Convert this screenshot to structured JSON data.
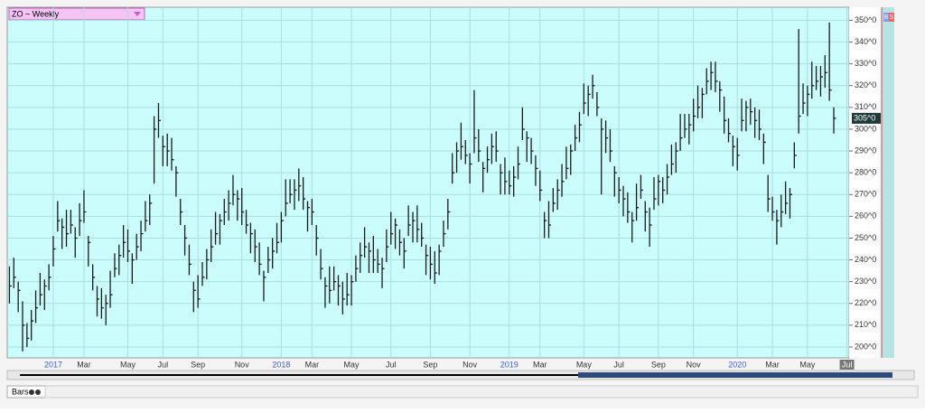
{
  "chart_data": {
    "type": "hlc",
    "title": "ZO ~ Weekly",
    "color": "#1a1a1a",
    "grid": true,
    "ylim": [
      195,
      356
    ],
    "yticks": [
      {
        "value": 200,
        "label": "200^0"
      },
      {
        "value": 210,
        "label": "210^0"
      },
      {
        "value": 220,
        "label": "220^0"
      },
      {
        "value": 230,
        "label": "230^0"
      },
      {
        "value": 240,
        "label": "240^0"
      },
      {
        "value": 250,
        "label": "250^0"
      },
      {
        "value": 260,
        "label": "260^0"
      },
      {
        "value": 270,
        "label": "270^0"
      },
      {
        "value": 280,
        "label": "280^0"
      },
      {
        "value": 290,
        "label": "290^0"
      },
      {
        "value": 300,
        "label": "300^0"
      },
      {
        "value": 310,
        "label": "310^0"
      },
      {
        "value": 320,
        "label": "320^0"
      },
      {
        "value": 330,
        "label": "330^0"
      },
      {
        "value": 340,
        "label": "340^0"
      },
      {
        "value": 350,
        "label": "350^0"
      }
    ],
    "last_price": {
      "value": 305,
      "label": "305^0"
    },
    "categories": [
      null,
      null,
      null,
      null,
      null,
      null,
      null,
      null,
      null,
      null,
      "2017",
      null,
      null,
      null,
      null,
      null,
      null,
      "Mar",
      null,
      null,
      null,
      null,
      null,
      null,
      null,
      null,
      null,
      "May",
      null,
      null,
      null,
      null,
      null,
      null,
      null,
      "Jul",
      null,
      null,
      null,
      null,
      null,
      null,
      null,
      "Sep",
      null,
      null,
      null,
      null,
      null,
      null,
      null,
      null,
      null,
      "Nov",
      null,
      null,
      null,
      null,
      null,
      null,
      null,
      null,
      "2018",
      null,
      null,
      null,
      null,
      null,
      null,
      "Mar",
      null,
      null,
      null,
      null,
      null,
      null,
      null,
      null,
      "May",
      null,
      null,
      null,
      null,
      null,
      null,
      null,
      null,
      "Jul",
      null,
      null,
      null,
      null,
      null,
      null,
      null,
      null,
      "Sep",
      null,
      null,
      null,
      null,
      null,
      null,
      null,
      null,
      "Nov",
      null,
      null,
      null,
      null,
      null,
      null,
      null,
      null,
      "2019",
      null,
      null,
      null,
      null,
      null,
      null,
      "Mar",
      null,
      null,
      null,
      null,
      null,
      null,
      null,
      null,
      null,
      "May",
      null,
      null,
      null,
      null,
      null,
      null,
      null,
      "Jul",
      null,
      null,
      null,
      null,
      null,
      null,
      null,
      null,
      "Sep",
      null,
      null,
      null,
      null,
      null,
      null,
      null,
      "Nov",
      null,
      null,
      null,
      null,
      null,
      null,
      null,
      null,
      null,
      "2020",
      null,
      null,
      null,
      null,
      null,
      null,
      null,
      "Mar",
      null,
      null,
      null,
      null,
      null,
      null,
      null,
      "May",
      null,
      null,
      null,
      null,
      null,
      null,
      null,
      null,
      "Jul"
    ],
    "high": [
      237,
      241,
      230,
      221,
      211,
      217,
      226,
      234,
      231,
      238,
      251,
      267,
      259,
      263,
      263,
      255,
      266,
      272,
      251,
      238,
      228,
      227,
      224,
      235,
      243,
      247,
      256,
      254,
      243,
      252,
      258,
      267,
      270,
      306,
      312,
      297,
      298,
      296,
      283,
      268,
      256,
      247,
      230,
      233,
      239,
      245,
      254,
      262,
      261,
      268,
      272,
      279,
      272,
      273,
      263,
      257,
      254,
      248,
      235,
      246,
      250,
      257,
      262,
      277,
      277,
      277,
      282,
      278,
      267,
      268,
      256,
      245,
      232,
      237,
      237,
      233,
      230,
      234,
      233,
      242,
      248,
      255,
      248,
      251,
      245,
      241,
      254,
      262,
      259,
      254,
      250,
      265,
      262,
      265,
      257,
      247,
      246,
      244,
      247,
      258,
      268,
      289,
      294,
      303,
      295,
      289,
      318,
      300,
      285,
      292,
      298,
      299,
      284,
      287,
      281,
      283,
      292,
      310,
      299,
      296,
      288,
      281,
      262,
      267,
      273,
      277,
      284,
      292,
      293,
      302,
      308,
      321,
      320,
      325,
      317,
      305,
      304,
      300,
      283,
      278,
      274,
      271,
      262,
      275,
      279,
      267,
      264,
      278,
      279,
      278,
      284,
      293,
      294,
      307,
      307,
      307,
      314,
      320,
      319,
      328,
      331,
      331,
      322,
      315,
      305,
      297,
      296,
      314,
      313,
      314,
      310,
      309,
      298,
      279,
      269,
      263,
      270,
      276,
      273,
      294,
      346,
      321,
      320,
      331,
      329,
      329,
      334,
      349,
      310,
      null,
      null,
      null
    ],
    "low": [
      220,
      227,
      216,
      198,
      200,
      203,
      211,
      219,
      217,
      226,
      237,
      253,
      245,
      246,
      252,
      241,
      251,
      257,
      237,
      226,
      214,
      213,
      210,
      218,
      232,
      233,
      241,
      239,
      229,
      240,
      244,
      253,
      256,
      275,
      296,
      283,
      283,
      281,
      269,
      256,
      242,
      233,
      216,
      218,
      228,
      231,
      239,
      247,
      247,
      256,
      258,
      265,
      258,
      256,
      252,
      243,
      239,
      233,
      221,
      234,
      236,
      243,
      248,
      260,
      266,
      263,
      267,
      263,
      253,
      256,
      242,
      231,
      218,
      220,
      226,
      219,
      215,
      219,
      219,
      230,
      234,
      241,
      234,
      234,
      234,
      227,
      239,
      247,
      245,
      242,
      236,
      251,
      248,
      248,
      246,
      233,
      231,
      229,
      233,
      246,
      254,
      275,
      280,
      286,
      284,
      275,
      289,
      285,
      271,
      280,
      284,
      285,
      270,
      270,
      270,
      269,
      277,
      295,
      285,
      284,
      274,
      267,
      250,
      250,
      262,
      263,
      269,
      277,
      279,
      290,
      294,
      307,
      306,
      314,
      306,
      270,
      289,
      285,
      269,
      266,
      260,
      257,
      248,
      258,
      268,
      253,
      246,
      263,
      265,
      266,
      270,
      279,
      280,
      290,
      296,
      293,
      299,
      305,
      305,
      316,
      318,
      317,
      308,
      298,
      294,
      283,
      281,
      299,
      299,
      302,
      296,
      295,
      284,
      262,
      258,
      247,
      255,
      261,
      259,
      282,
      298,
      307,
      306,
      314,
      318,
      315,
      319,
      313,
      298,
      null,
      null,
      null
    ],
    "close": [
      228,
      232,
      226,
      210,
      204,
      212,
      218,
      224,
      228,
      232,
      245,
      258,
      255,
      252,
      256,
      250,
      258,
      262,
      248,
      232,
      222,
      218,
      220,
      224,
      236,
      242,
      248,
      244,
      240,
      246,
      252,
      258,
      266,
      300,
      304,
      292,
      290,
      286,
      280,
      262,
      250,
      238,
      226,
      222,
      232,
      240,
      246,
      252,
      258,
      262,
      266,
      270,
      268,
      262,
      256,
      252,
      246,
      238,
      232,
      240,
      244,
      248,
      258,
      266,
      270,
      272,
      274,
      268,
      264,
      262,
      250,
      236,
      228,
      226,
      230,
      228,
      222,
      224,
      230,
      236,
      242,
      246,
      244,
      240,
      238,
      236,
      246,
      252,
      256,
      248,
      244,
      256,
      258,
      254,
      250,
      242,
      238,
      234,
      244,
      252,
      262,
      280,
      290,
      292,
      288,
      284,
      296,
      290,
      282,
      286,
      292,
      290,
      280,
      276,
      274,
      278,
      284,
      300,
      296,
      290,
      282,
      272,
      258,
      256,
      266,
      272,
      276,
      282,
      290,
      296,
      302,
      312,
      316,
      320,
      310,
      300,
      296,
      290,
      280,
      272,
      268,
      262,
      258,
      264,
      272,
      262,
      256,
      268,
      276,
      272,
      278,
      284,
      290,
      296,
      300,
      302,
      306,
      310,
      316,
      322,
      326,
      322,
      318,
      304,
      298,
      292,
      288,
      304,
      310,
      308,
      304,
      300,
      294,
      268,
      262,
      258,
      262,
      266,
      270,
      288,
      306,
      312,
      316,
      320,
      322,
      324,
      326,
      318,
      305,
      null,
      null,
      null
    ]
  },
  "ui": {
    "buttons": [
      "B",
      "S"
    ],
    "tab": "Bars"
  }
}
